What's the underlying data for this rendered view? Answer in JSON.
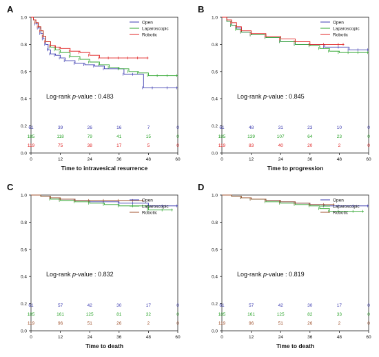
{
  "colors": {
    "Open": "#3b3bb0",
    "Laparoscopic": "#2ea52e",
    "Robotic": "#e02020",
    "Robotic_brown": "#a0522d",
    "axis": "#222222",
    "text": "#111111"
  },
  "chart_data": [
    {
      "type": "line",
      "panel_letter": "A",
      "xlabel": "Time to intravesical resurrence",
      "xticks": [
        0,
        12,
        24,
        36,
        48,
        60
      ],
      "yticks": [
        "0.0",
        "0.2",
        "0.4",
        "0.6",
        "0.8",
        "1.0"
      ],
      "xlim": [
        0,
        60
      ],
      "ylim": [
        0,
        1
      ],
      "legend": [
        "Open",
        "Laparoscopic",
        "Robotic"
      ],
      "legend_position": "top-right",
      "annotation": {
        "prefix": "Log-rank ",
        "italic": "p",
        "suffix": "-value : 0.483"
      },
      "robotic_color": "Robotic",
      "series": [
        {
          "name": "Open",
          "x": [
            0,
            1,
            2,
            3,
            4,
            5,
            6,
            7,
            8,
            10,
            12,
            14,
            18,
            22,
            26,
            30,
            36,
            38,
            42,
            46,
            50,
            56,
            60
          ],
          "y": [
            1.0,
            0.98,
            0.95,
            0.92,
            0.88,
            0.84,
            0.8,
            0.76,
            0.73,
            0.72,
            0.7,
            0.68,
            0.66,
            0.65,
            0.64,
            0.62,
            0.62,
            0.58,
            0.58,
            0.48,
            0.48,
            0.48,
            0.48
          ]
        },
        {
          "name": "Laparoscopic",
          "x": [
            0,
            1,
            2,
            3,
            4,
            5,
            6,
            8,
            10,
            12,
            16,
            20,
            24,
            28,
            32,
            36,
            40,
            44,
            48,
            52,
            56,
            60
          ],
          "y": [
            1.0,
            0.98,
            0.96,
            0.93,
            0.9,
            0.86,
            0.82,
            0.78,
            0.76,
            0.74,
            0.71,
            0.69,
            0.67,
            0.65,
            0.63,
            0.62,
            0.6,
            0.59,
            0.57,
            0.57,
            0.57,
            0.57
          ]
        },
        {
          "name": "Robotic",
          "x": [
            0,
            1,
            2,
            3,
            4,
            5,
            6,
            8,
            10,
            12,
            16,
            20,
            24,
            28,
            32,
            36,
            40,
            44,
            48
          ],
          "y": [
            1.0,
            0.98,
            0.96,
            0.93,
            0.9,
            0.86,
            0.82,
            0.79,
            0.78,
            0.77,
            0.75,
            0.74,
            0.72,
            0.7,
            0.7,
            0.7,
            0.7,
            0.7,
            0.7
          ]
        }
      ],
      "risk_table": [
        {
          "name": "Open",
          "values": [
            "61",
            "39",
            "26",
            "16",
            "7",
            "0"
          ]
        },
        {
          "name": "Laparoscopic",
          "values": [
            "185",
            "118",
            "79",
            "41",
            "15",
            "0"
          ]
        },
        {
          "name": "Robotic",
          "values": [
            "119",
            "75",
            "38",
            "17",
            "5",
            "0"
          ]
        }
      ]
    },
    {
      "type": "line",
      "panel_letter": "B",
      "xlabel": "Time to progression",
      "xticks": [
        0,
        12,
        24,
        36,
        48,
        60
      ],
      "yticks": [
        "0.0",
        "0.2",
        "0.4",
        "0.6",
        "0.8",
        "1.0"
      ],
      "xlim": [
        0,
        60
      ],
      "ylim": [
        0,
        1
      ],
      "legend": [
        "Open",
        "Laparoscopic",
        "Robotic"
      ],
      "legend_position": "right",
      "annotation": {
        "prefix": "Log-rank ",
        "italic": "p",
        "suffix": "-value : 0.845"
      },
      "robotic_color": "Robotic",
      "series": [
        {
          "name": "Open",
          "x": [
            0,
            2,
            4,
            6,
            8,
            12,
            18,
            24,
            30,
            36,
            42,
            48,
            52,
            56,
            60
          ],
          "y": [
            1.0,
            0.97,
            0.94,
            0.92,
            0.89,
            0.87,
            0.85,
            0.82,
            0.8,
            0.8,
            0.78,
            0.78,
            0.76,
            0.76,
            0.76
          ]
        },
        {
          "name": "Laparoscopic",
          "x": [
            0,
            2,
            4,
            6,
            8,
            12,
            18,
            24,
            30,
            36,
            40,
            44,
            48,
            52,
            56,
            60
          ],
          "y": [
            1.0,
            0.97,
            0.94,
            0.91,
            0.89,
            0.87,
            0.85,
            0.82,
            0.8,
            0.79,
            0.77,
            0.75,
            0.74,
            0.74,
            0.74,
            0.74
          ]
        },
        {
          "name": "Robotic",
          "x": [
            0,
            2,
            4,
            6,
            8,
            12,
            18,
            24,
            30,
            36,
            42,
            48,
            50
          ],
          "y": [
            1.0,
            0.98,
            0.96,
            0.93,
            0.9,
            0.88,
            0.86,
            0.84,
            0.82,
            0.8,
            0.8,
            0.8,
            0.8
          ]
        }
      ],
      "risk_table": [
        {
          "name": "Open",
          "values": [
            "61",
            "48",
            "31",
            "23",
            "10",
            "0"
          ]
        },
        {
          "name": "Laparoscopic",
          "values": [
            "185",
            "139",
            "107",
            "64",
            "23",
            "0"
          ]
        },
        {
          "name": "Robotic",
          "values": [
            "119",
            "83",
            "40",
            "20",
            "2",
            "0"
          ]
        }
      ]
    },
    {
      "type": "line",
      "panel_letter": "C",
      "xlabel": "Time to death",
      "xticks": [
        0,
        12,
        24,
        36,
        48,
        60
      ],
      "yticks": [
        "0.0",
        "0.2",
        "0.4",
        "0.6",
        "0.8",
        "1.0"
      ],
      "xlim": [
        0,
        60
      ],
      "ylim": [
        0,
        1
      ],
      "legend": [
        "Open",
        "Laparoscopic",
        "Robotic"
      ],
      "legend_position": "right",
      "annotation": {
        "prefix": "Log-rank ",
        "italic": "p",
        "suffix": "-value : 0.832"
      },
      "robotic_color": "Robotic_brown",
      "series": [
        {
          "name": "Open",
          "x": [
            0,
            4,
            8,
            12,
            18,
            24,
            30,
            36,
            42,
            48,
            54,
            60
          ],
          "y": [
            1.0,
            0.99,
            0.98,
            0.97,
            0.96,
            0.95,
            0.95,
            0.94,
            0.94,
            0.92,
            0.92,
            0.92
          ]
        },
        {
          "name": "Laparoscopic",
          "x": [
            0,
            4,
            8,
            12,
            18,
            24,
            30,
            36,
            42,
            48,
            54,
            58
          ],
          "y": [
            1.0,
            0.99,
            0.97,
            0.96,
            0.95,
            0.94,
            0.93,
            0.92,
            0.92,
            0.89,
            0.89,
            0.89
          ]
        },
        {
          "name": "Robotic",
          "x": [
            0,
            4,
            8,
            12,
            18,
            24,
            30,
            36,
            42,
            46
          ],
          "y": [
            1.0,
            0.99,
            0.98,
            0.97,
            0.96,
            0.96,
            0.96,
            0.96,
            0.96,
            0.96
          ]
        }
      ],
      "risk_table": [
        {
          "name": "Open",
          "values": [
            "61",
            "57",
            "42",
            "30",
            "17",
            "0"
          ]
        },
        {
          "name": "Laparoscopic",
          "values": [
            "185",
            "161",
            "125",
            "81",
            "32",
            "0"
          ]
        },
        {
          "name": "Robotic",
          "values": [
            "119",
            "96",
            "51",
            "26",
            "2",
            "0"
          ]
        }
      ]
    },
    {
      "type": "line",
      "panel_letter": "D",
      "xlabel": "Time to death",
      "xticks": [
        0,
        12,
        24,
        36,
        48,
        60
      ],
      "yticks": [
        "0.0",
        "0.2",
        "0.4",
        "0.6",
        "0.8",
        "1.0"
      ],
      "xlim": [
        0,
        60
      ],
      "ylim": [
        0,
        1
      ],
      "legend": [
        "Open",
        "Laparoscopic",
        "Robotic"
      ],
      "legend_position": "right",
      "annotation": {
        "prefix": "Log-rank ",
        "italic": "p",
        "suffix": "-value : 0.819"
      },
      "robotic_color": "Robotic_brown",
      "series": [
        {
          "name": "Open",
          "x": [
            0,
            4,
            8,
            12,
            18,
            24,
            30,
            36,
            42,
            48,
            54,
            60
          ],
          "y": [
            1.0,
            0.99,
            0.98,
            0.97,
            0.96,
            0.95,
            0.94,
            0.93,
            0.92,
            0.92,
            0.92,
            0.92
          ]
        },
        {
          "name": "Laparoscopic",
          "x": [
            0,
            4,
            8,
            12,
            18,
            24,
            30,
            36,
            40,
            44,
            48,
            54,
            58
          ],
          "y": [
            1.0,
            0.99,
            0.98,
            0.97,
            0.95,
            0.94,
            0.93,
            0.92,
            0.9,
            0.88,
            0.88,
            0.88,
            0.88
          ]
        },
        {
          "name": "Robotic",
          "x": [
            0,
            4,
            8,
            12,
            18,
            24,
            30,
            36,
            42,
            46
          ],
          "y": [
            1.0,
            0.99,
            0.98,
            0.97,
            0.96,
            0.95,
            0.94,
            0.93,
            0.93,
            0.93
          ]
        }
      ],
      "risk_table": [
        {
          "name": "Open",
          "values": [
            "61",
            "57",
            "42",
            "30",
            "17",
            "0"
          ]
        },
        {
          "name": "Laparoscopic",
          "values": [
            "185",
            "161",
            "125",
            "82",
            "33",
            "0"
          ]
        },
        {
          "name": "Robotic",
          "values": [
            "119",
            "96",
            "51",
            "26",
            "2",
            "0"
          ]
        }
      ]
    }
  ]
}
